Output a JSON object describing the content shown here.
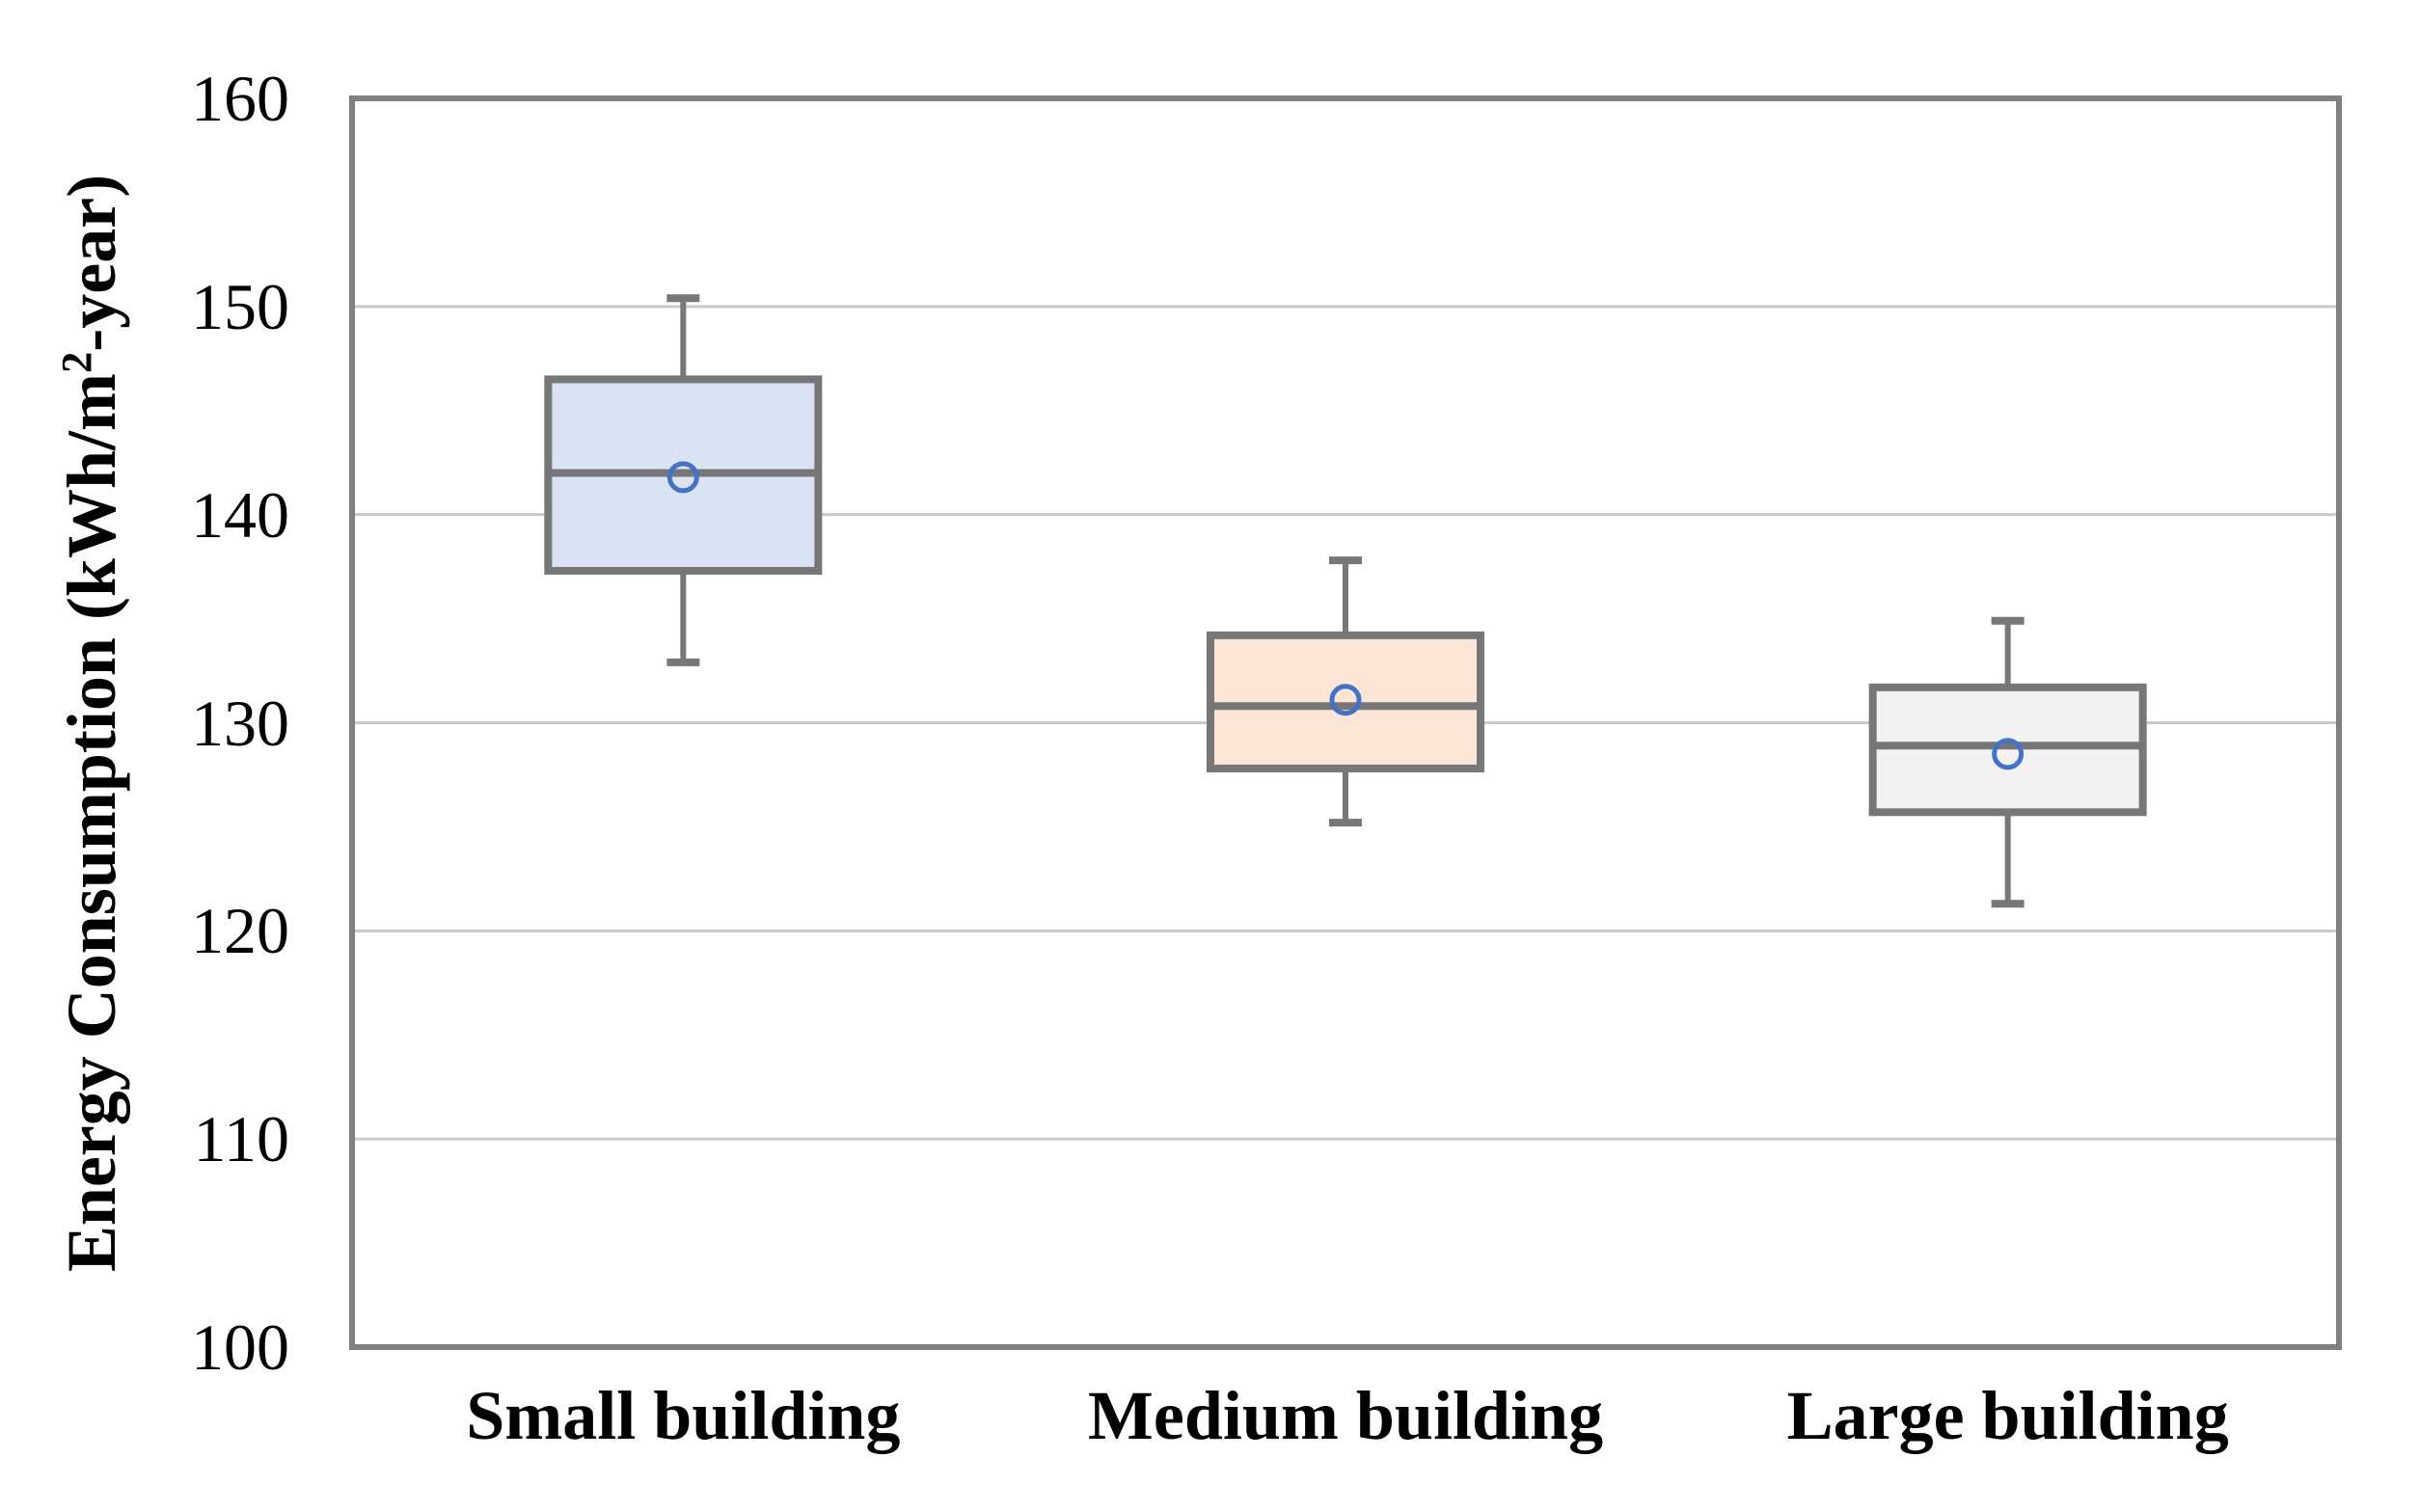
{
  "chart_data": {
    "type": "boxplot",
    "categories": [
      "Small building",
      "Medium building",
      "Large building"
    ],
    "series": [
      {
        "name": "Small building",
        "whisker_low": 132.9,
        "q1": 137.3,
        "median": 142.0,
        "mean": 141.8,
        "q3": 146.5,
        "whisker_high": 150.4,
        "fill": "#dae3f3"
      },
      {
        "name": "Medium building",
        "whisker_low": 125.2,
        "q1": 127.8,
        "median": 130.8,
        "mean": 131.1,
        "q3": 134.2,
        "whisker_high": 137.8,
        "fill": "#fbe5d6"
      },
      {
        "name": "Large building",
        "whisker_low": 121.3,
        "q1": 125.7,
        "median": 128.9,
        "mean": 128.5,
        "q3": 131.7,
        "whisker_high": 134.9,
        "fill": "#f2f2f2"
      }
    ],
    "xlabel": "",
    "ylabel": "Energy Consumption (kWh/m2-year)",
    "ylim": [
      100,
      160
    ],
    "y_ticks": [
      160,
      150,
      140,
      130,
      120,
      110,
      100
    ],
    "y_tick_labels": [
      "160",
      "150",
      "140",
      "130",
      "120",
      "110",
      "100"
    ],
    "grid": true,
    "legend": "none",
    "colors": {
      "box_border": "#777777",
      "whisker": "#777777",
      "median": "#777777",
      "mean_marker": "#4472c4",
      "gridline": "#c9c9c9",
      "frame": "#808080",
      "text": "#000000",
      "background": "#ffffff"
    }
  },
  "y_axis": {
    "title_prefix": "Energy Consumption (kWh/m",
    "title_sup": "2",
    "title_suffix": "-year)"
  }
}
